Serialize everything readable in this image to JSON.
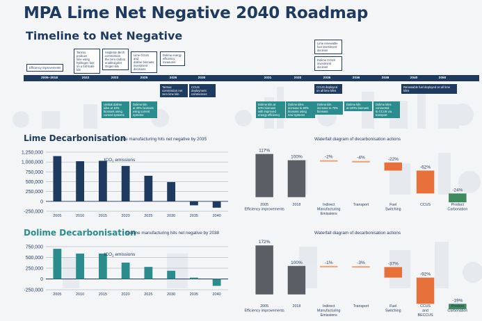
{
  "title": "MPA Lime Net Negative 2040 Roadmap",
  "subtitle": "Timeline to Net Negative",
  "timeline": {
    "periods": [
      "2005–2018",
      "2022",
      "2023",
      "2025",
      "2026",
      "2030",
      "2031",
      "2033",
      "2035",
      "2036",
      "2038",
      "2040",
      "2050"
    ],
    "notes_above": [
      {
        "lines": [
          "Efficiency improvements"
        ]
      },
      {
        "lines": [
          "Tarmac produce",
          "lime using",
          "hydrogen fuel",
          "on a full scale",
          "kiln"
        ]
      },
      {
        "lines": [
          "Singleton Birch",
          "commission",
          "the zero carbon",
          "enabled pilot",
          "Origen kiln"
        ]
      },
      {
        "lines": [
          "Lime CCUS and",
          "dolime biomass",
          "investment",
          "decisions"
        ]
      },
      {
        "lines": [
          "Dolime energy",
          "efficiency",
          "measures"
        ]
      },
      {
        "lines": [
          "Lime renewable",
          "fuel investment",
          "decision"
        ]
      },
      {
        "lines": [
          "Dolime CCUS",
          "investment",
          "decision"
        ]
      }
    ],
    "notes_below": [
      {
        "lines": [
          "Tarmac",
          "commission net",
          "zero lime kiln"
        ]
      },
      {
        "lines": [
          "CCUS",
          "deployment",
          "commences"
        ]
      },
      {
        "lines": [
          "CCUS deployed",
          "on all lime kilns"
        ]
      },
      {
        "lines": [
          "Renewable fuel deployed on all lime",
          "kilns"
        ]
      },
      {
        "lines": [
          "Unslak dolime",
          "kilns at 10%",
          "biomass using",
          "current systems"
        ]
      },
      {
        "lines": [
          "Dolime kiln",
          "at 30% biomass",
          "using current",
          "systems"
        ]
      },
      {
        "lines": [
          "Dolime kiln at",
          "50% biomass",
          "with improved",
          "energy efficiency"
        ]
      },
      {
        "lines": [
          "Dolime kilns",
          "increase to 60%",
          "biomass using",
          "new systems"
        ]
      },
      {
        "lines": [
          "Dolime kiln",
          "increase to 70%",
          "biomass"
        ]
      },
      {
        "lines": [
          "Dolime kiln",
          "at 100% biomass"
        ]
      },
      {
        "lines": [
          "Dolime kilns",
          "connected",
          "to CCUS via",
          "transport"
        ]
      }
    ]
  },
  "lime": {
    "heading": "Lime Decarbonisation",
    "description": "Lime manufacturing hits net negative by 2035",
    "waterfall_title": "Waterfall diagram of decarbonisation actions"
  },
  "dolime": {
    "heading": "Dolime Decarbonisation",
    "description": "Dolime manufacturing hits net negative by 2038",
    "waterfall_title": "Waterfall diagram of decarbonisation actions"
  },
  "colors": {
    "navy": "#1f3a5f",
    "teal": "#2a8c8c",
    "grey_bar": "#5a5f66",
    "orange_light": "#f0a070",
    "orange": "#e8703a",
    "green": "#3e8a5c",
    "text_accent_teal": "#2a8c8c"
  },
  "chart_data": [
    {
      "type": "bar",
      "title": "Lime manufacturing hits net negative by 2035",
      "series_label": "t CO2 emissions",
      "categories": [
        "2005",
        "2010",
        "2015",
        "2020",
        "2025",
        "2030",
        "2035",
        "2040"
      ],
      "values": [
        1150000,
        1020000,
        1030000,
        900000,
        650000,
        490000,
        -100000,
        -160000
      ],
      "ylim": [
        -250000,
        1250000
      ],
      "yticks": [
        "1,250,000",
        "1,000,000",
        "750,000",
        "500,000",
        "250,000",
        "0",
        "-250,000"
      ],
      "ytick_values": [
        1250000,
        1000000,
        750000,
        500000,
        250000,
        0,
        -250000
      ]
    },
    {
      "type": "waterfall",
      "title": "Waterfall diagram of decarbonisation actions",
      "categories": [
        "2005 Efficiency improvements",
        "2018",
        "Indirect Manufacturing Emissions",
        "Transport",
        "Fuel Switching",
        "CCUS",
        "Product Carbonation"
      ],
      "labels": [
        "117%",
        "100%",
        "-2%",
        "-4%",
        "-22%",
        "-62%",
        "-24%"
      ],
      "values": [
        117,
        100,
        -2,
        -4,
        -22,
        -62,
        -24
      ]
    },
    {
      "type": "bar",
      "title": "Dolime manufacturing hits net negative by 2038",
      "series_label": "t CO2 emissions",
      "categories": [
        "2005",
        "2010",
        "2015",
        "2020",
        "2025",
        "2030",
        "2035",
        "2040"
      ],
      "values": [
        700000,
        590000,
        590000,
        380000,
        280000,
        190000,
        30000,
        -160000
      ],
      "ylim": [
        -250000,
        750000
      ],
      "yticks": [
        "750,000",
        "500,000",
        "250,000",
        "0",
        "-250,000"
      ],
      "ytick_values": [
        750000,
        500000,
        250000,
        0,
        -250000
      ]
    },
    {
      "type": "waterfall",
      "title": "Waterfall diagram of decarbonisation actions",
      "categories": [
        "2005 Efficiency improvements",
        "2018",
        "Indirect Manufacturing Emissions",
        "Transport",
        "Fuel Switching",
        "CCUS and BECCUS",
        "Product Carbonation"
      ],
      "labels": [
        "172%",
        "100%",
        "-1%",
        "-3%",
        "-37%",
        "-92%",
        "-19%"
      ],
      "values": [
        172,
        100,
        -1,
        -3,
        -37,
        -92,
        -19
      ]
    }
  ]
}
